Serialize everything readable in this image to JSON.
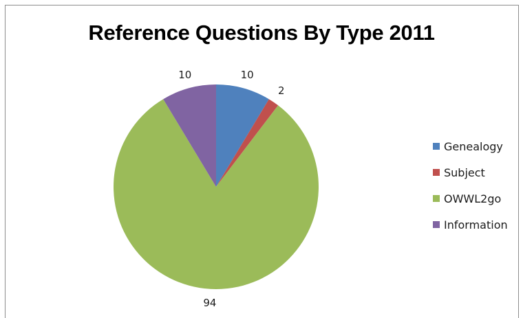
{
  "chart_data": {
    "type": "pie",
    "title": "Reference Questions By Type 2011",
    "categories": [
      "Genealogy",
      "Subject",
      "OWWL2go",
      "Information"
    ],
    "values": [
      10,
      2,
      94,
      10
    ],
    "colors": [
      "#4f81bd",
      "#c0504d",
      "#9bbb59",
      "#8064a2"
    ],
    "start_angle_deg": 0,
    "direction": "clockwise",
    "legend_position": "right",
    "data_labels": [
      "10",
      "2",
      "94",
      "10"
    ]
  }
}
